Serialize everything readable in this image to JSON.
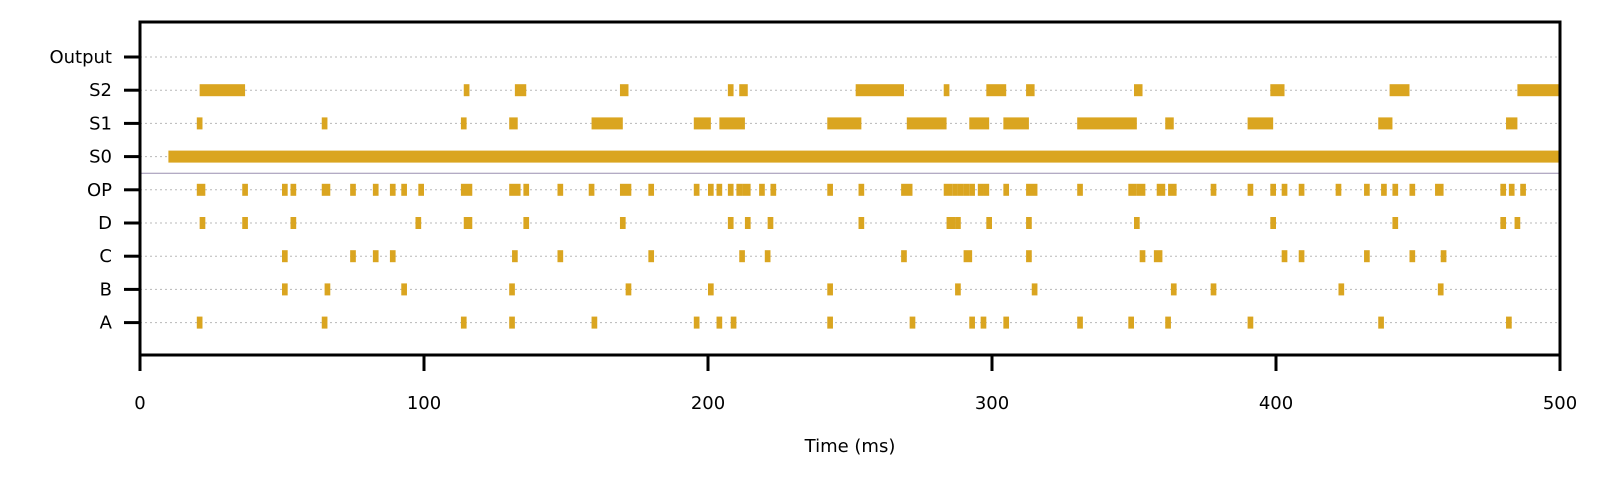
{
  "chart_data": {
    "type": "raster",
    "title": "",
    "xlabel": "Time (ms)",
    "ylabel": "",
    "xlim": [
      0,
      500
    ],
    "xticks": [
      0,
      100,
      200,
      300,
      400,
      500
    ],
    "grid": "horizontal-dotted",
    "color": "#DAA520",
    "rows": [
      {
        "name": "Output",
        "intervals": []
      },
      {
        "name": "S2",
        "intervals": [
          [
            21,
            37
          ],
          [
            114,
            116
          ],
          [
            132,
            136
          ],
          [
            169,
            172
          ],
          [
            207,
            209
          ],
          [
            211,
            214
          ],
          [
            252,
            269
          ],
          [
            283,
            285
          ],
          [
            298,
            305
          ],
          [
            312,
            315
          ],
          [
            350,
            353
          ],
          [
            398,
            403
          ],
          [
            440,
            447
          ],
          [
            485,
            500
          ]
        ]
      },
      {
        "name": "S1",
        "intervals": [
          [
            20,
            22
          ],
          [
            64,
            66
          ],
          [
            113,
            115
          ],
          [
            130,
            133
          ],
          [
            159,
            170
          ],
          [
            195,
            201
          ],
          [
            204,
            213
          ],
          [
            242,
            254
          ],
          [
            270,
            284
          ],
          [
            292,
            299
          ],
          [
            304,
            313
          ],
          [
            330,
            351
          ],
          [
            361,
            364
          ],
          [
            390,
            399
          ],
          [
            436,
            441
          ],
          [
            481,
            485
          ]
        ]
      },
      {
        "name": "S0",
        "intervals": [
          [
            10,
            500
          ]
        ]
      },
      {
        "name": "OP",
        "intervals": [
          [
            20,
            23
          ],
          [
            36,
            38
          ],
          [
            50,
            52
          ],
          [
            53,
            55
          ],
          [
            64,
            67
          ],
          [
            74,
            76
          ],
          [
            82,
            84
          ],
          [
            88,
            90
          ],
          [
            92,
            94
          ],
          [
            98,
            100
          ],
          [
            113,
            117
          ],
          [
            130,
            134
          ],
          [
            135,
            137
          ],
          [
            147,
            149
          ],
          [
            158,
            160
          ],
          [
            169,
            173
          ],
          [
            179,
            181
          ],
          [
            195,
            197
          ],
          [
            200,
            202
          ],
          [
            203,
            205
          ],
          [
            207,
            209
          ],
          [
            210,
            212
          ],
          [
            212,
            215
          ],
          [
            218,
            220
          ],
          [
            222,
            224
          ],
          [
            242,
            244
          ],
          [
            253,
            255
          ],
          [
            268,
            272
          ],
          [
            283,
            286
          ],
          [
            286,
            288
          ],
          [
            288,
            290
          ],
          [
            290,
            292
          ],
          [
            292,
            294
          ],
          [
            295,
            297
          ],
          [
            297,
            299
          ],
          [
            304,
            306
          ],
          [
            312,
            316
          ],
          [
            330,
            332
          ],
          [
            348,
            351
          ],
          [
            351,
            354
          ],
          [
            358,
            361
          ],
          [
            362,
            365
          ],
          [
            377,
            379
          ],
          [
            390,
            392
          ],
          [
            398,
            400
          ],
          [
            402,
            404
          ],
          [
            408,
            410
          ],
          [
            421,
            423
          ],
          [
            431,
            433
          ],
          [
            437,
            439
          ],
          [
            441,
            443
          ],
          [
            447,
            449
          ],
          [
            456,
            459
          ],
          [
            479,
            481
          ],
          [
            482,
            484
          ],
          [
            486,
            488
          ]
        ]
      },
      {
        "name": "D",
        "intervals": [
          [
            21,
            23
          ],
          [
            36,
            38
          ],
          [
            53,
            55
          ],
          [
            97,
            99
          ],
          [
            114,
            117
          ],
          [
            135,
            137
          ],
          [
            169,
            171
          ],
          [
            207,
            209
          ],
          [
            213,
            215
          ],
          [
            221,
            223
          ],
          [
            253,
            255
          ],
          [
            284,
            287
          ],
          [
            287,
            289
          ],
          [
            298,
            300
          ],
          [
            312,
            314
          ],
          [
            350,
            352
          ],
          [
            398,
            400
          ],
          [
            441,
            443
          ],
          [
            479,
            481
          ],
          [
            484,
            486
          ]
        ]
      },
      {
        "name": "C",
        "intervals": [
          [
            50,
            52
          ],
          [
            74,
            76
          ],
          [
            82,
            84
          ],
          [
            88,
            90
          ],
          [
            131,
            133
          ],
          [
            147,
            149
          ],
          [
            179,
            181
          ],
          [
            211,
            213
          ],
          [
            220,
            222
          ],
          [
            268,
            270
          ],
          [
            290,
            293
          ],
          [
            312,
            314
          ],
          [
            352,
            354
          ],
          [
            357,
            360
          ],
          [
            402,
            404
          ],
          [
            408,
            410
          ],
          [
            431,
            433
          ],
          [
            447,
            449
          ],
          [
            458,
            460
          ]
        ]
      },
      {
        "name": "B",
        "intervals": [
          [
            50,
            52
          ],
          [
            65,
            67
          ],
          [
            92,
            94
          ],
          [
            130,
            132
          ],
          [
            171,
            173
          ],
          [
            200,
            202
          ],
          [
            242,
            244
          ],
          [
            287,
            289
          ],
          [
            314,
            316
          ],
          [
            363,
            365
          ],
          [
            377,
            379
          ],
          [
            422,
            424
          ],
          [
            457,
            459
          ]
        ]
      },
      {
        "name": "A",
        "intervals": [
          [
            20,
            22
          ],
          [
            64,
            66
          ],
          [
            113,
            115
          ],
          [
            130,
            132
          ],
          [
            159,
            161
          ],
          [
            195,
            197
          ],
          [
            203,
            205
          ],
          [
            208,
            210
          ],
          [
            242,
            244
          ],
          [
            271,
            273
          ],
          [
            292,
            294
          ],
          [
            296,
            298
          ],
          [
            304,
            306
          ],
          [
            330,
            332
          ],
          [
            348,
            350
          ],
          [
            361,
            363
          ],
          [
            390,
            392
          ],
          [
            436,
            438
          ],
          [
            481,
            483
          ]
        ]
      }
    ]
  }
}
